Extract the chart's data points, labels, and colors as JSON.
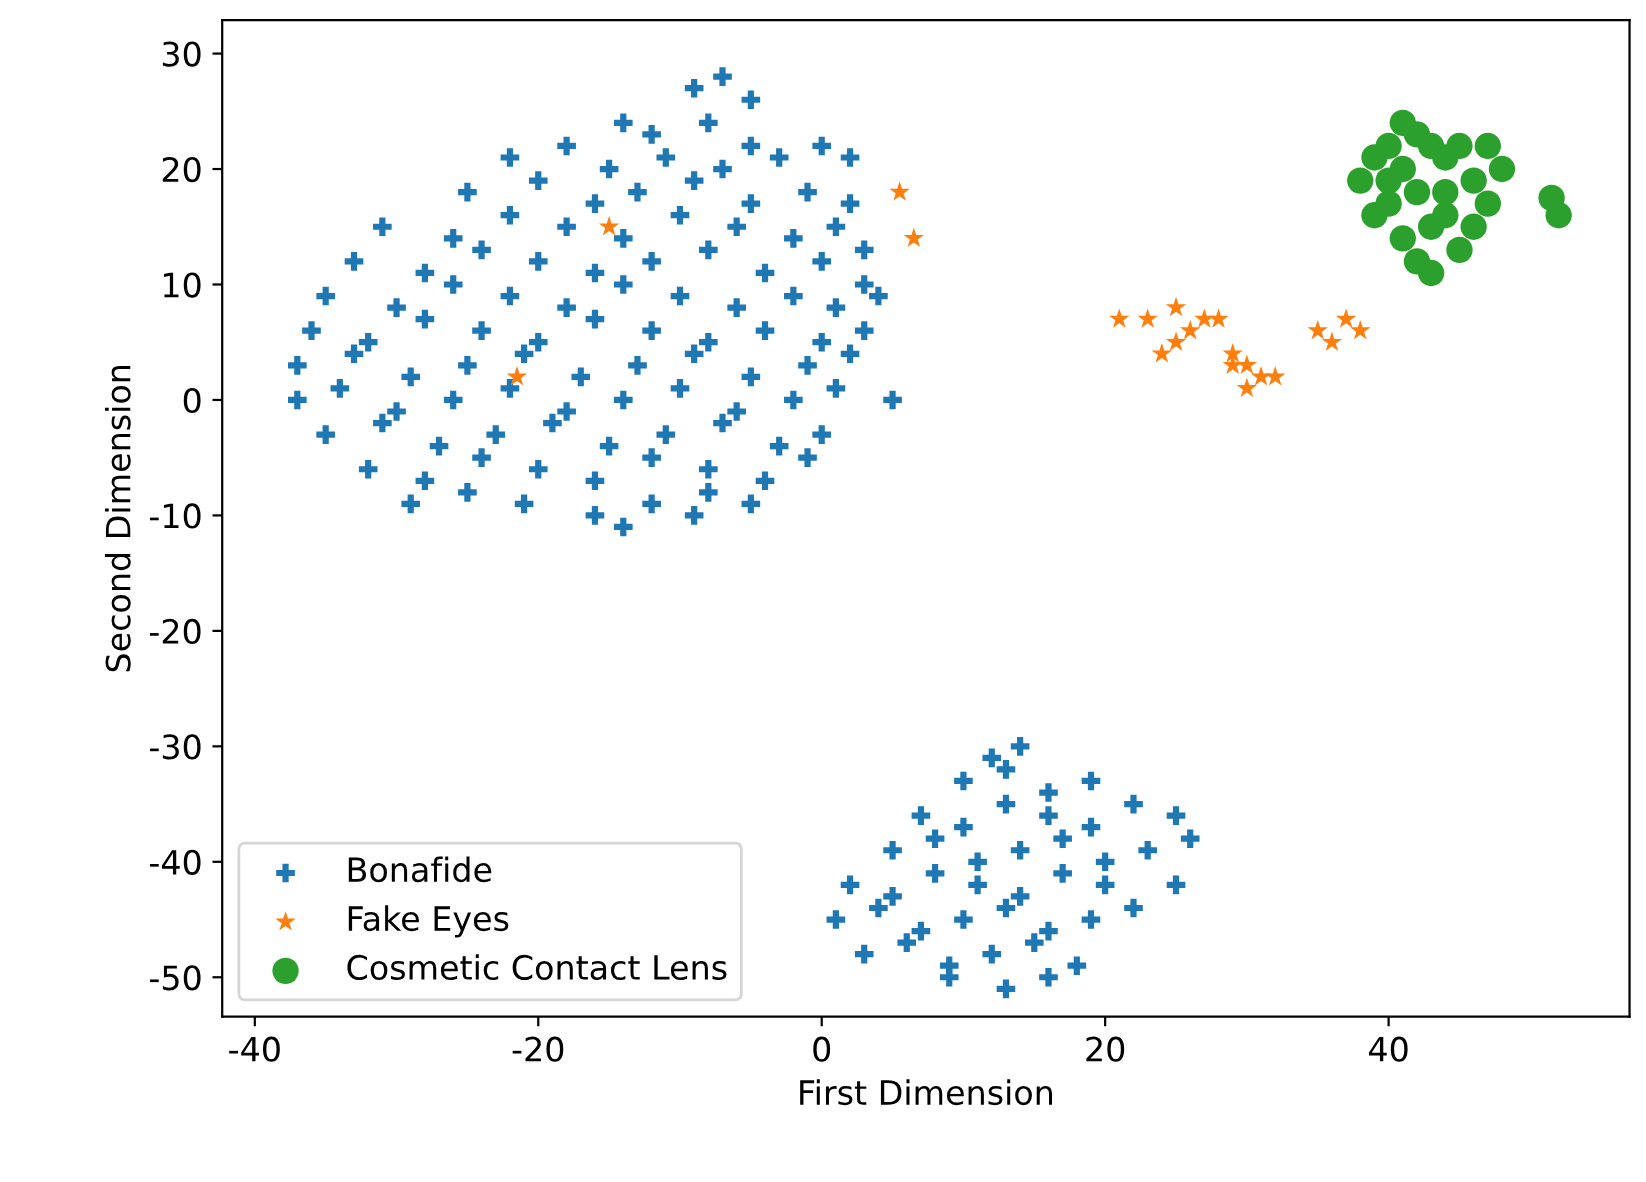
{
  "chart_data": {
    "type": "scatter",
    "xlabel": "First Dimension",
    "ylabel": "Second Dimension",
    "xlim": [
      -42.3,
      57
    ],
    "ylim": [
      -53.4,
      32.9
    ],
    "xticks": [
      -40,
      -20,
      0,
      20,
      40
    ],
    "yticks": [
      -50,
      -40,
      -30,
      -20,
      -10,
      0,
      10,
      20,
      30
    ],
    "grid": false,
    "legend": "bottom left",
    "series": [
      {
        "name": "Bonafide",
        "color": "#1f77b4",
        "marker": "cross",
        "x": [
          -9,
          -7,
          -5,
          -14,
          -12,
          -8,
          -5,
          -22,
          -18,
          -15,
          -11,
          -7,
          -3,
          0,
          2,
          -25,
          -20,
          -16,
          -13,
          -9,
          -5,
          -1,
          2,
          -31,
          -26,
          -22,
          -18,
          -14,
          -10,
          -6,
          -2,
          1,
          3,
          -33,
          -28,
          -24,
          -20,
          -16,
          -12,
          -8,
          -4,
          0,
          3,
          -35,
          -30,
          -26,
          -22,
          -18,
          -14,
          -10,
          -6,
          -2,
          1,
          4,
          -36,
          -32,
          -28,
          -24,
          -20,
          -16,
          -12,
          -8,
          -4,
          0,
          3,
          -37,
          -33,
          -29,
          -25,
          -21,
          -17,
          -13,
          -9,
          -5,
          -1,
          2,
          -37,
          -34,
          -30,
          -26,
          -22,
          -18,
          -14,
          -10,
          -6,
          -2,
          1,
          5,
          -35,
          -31,
          -27,
          -23,
          -19,
          -15,
          -11,
          -7,
          -3,
          0,
          -32,
          -28,
          -24,
          -20,
          -16,
          -12,
          -8,
          -4,
          -1,
          -29,
          -25,
          -21,
          -16,
          -12,
          -8,
          -5,
          -14,
          -9,
          12,
          14,
          10,
          13,
          16,
          19,
          7,
          10,
          13,
          16,
          19,
          22,
          25,
          5,
          8,
          11,
          14,
          17,
          20,
          23,
          26,
          2,
          5,
          8,
          11,
          14,
          17,
          20,
          25,
          1,
          4,
          7,
          10,
          13,
          16,
          19,
          22,
          3,
          6,
          9,
          12,
          15,
          18,
          9,
          13,
          16
        ],
        "values": [
          27,
          28,
          26,
          24,
          23,
          24,
          22,
          21,
          22,
          20,
          21,
          20,
          21,
          22,
          21,
          18,
          19,
          17,
          18,
          19,
          17,
          18,
          17,
          15,
          14,
          16,
          15,
          14,
          16,
          15,
          14,
          15,
          13,
          12,
          11,
          13,
          12,
          11,
          12,
          13,
          11,
          12,
          10,
          9,
          8,
          10,
          9,
          8,
          10,
          9,
          8,
          9,
          8,
          9,
          6,
          5,
          7,
          6,
          5,
          7,
          6,
          5,
          6,
          5,
          6,
          3,
          4,
          2,
          3,
          4,
          2,
          3,
          4,
          2,
          3,
          4,
          0,
          1,
          -1,
          0,
          1,
          -1,
          0,
          1,
          -1,
          0,
          1,
          0,
          -3,
          -2,
          -4,
          -3,
          -2,
          -4,
          -3,
          -2,
          -4,
          -3,
          -6,
          -7,
          -5,
          -6,
          -7,
          -5,
          -6,
          -7,
          -5,
          -9,
          -8,
          -9,
          -10,
          -9,
          -8,
          -9,
          -11,
          -10,
          -31,
          -30,
          -33,
          -32,
          -34,
          -33,
          -36,
          -37,
          -35,
          -36,
          -37,
          -35,
          -36,
          -39,
          -38,
          -40,
          -39,
          -38,
          -40,
          -39,
          -38,
          -42,
          -43,
          -41,
          -42,
          -43,
          -41,
          -42,
          -42,
          -45,
          -44,
          -46,
          -45,
          -44,
          -46,
          -45,
          -44,
          -48,
          -47,
          -49,
          -48,
          -47,
          -49,
          -50,
          -51,
          -50
        ]
      },
      {
        "name": "Fake Eyes",
        "color": "#ff7f0e",
        "marker": "star",
        "x": [
          5.5,
          6.5,
          -15,
          -21.5,
          21,
          23,
          25,
          26,
          27,
          25,
          24,
          28,
          29,
          30,
          31,
          30,
          32,
          29,
          35,
          37,
          38,
          36
        ],
        "values": [
          18,
          14,
          15,
          2,
          7,
          7,
          8,
          6,
          7,
          5,
          4,
          7,
          4,
          3,
          2,
          1,
          2,
          3,
          6,
          7,
          6,
          5
        ]
      },
      {
        "name": "Cosmetic Contact Lens",
        "color": "#2ca02c",
        "marker": "circle",
        "x": [
          38,
          39,
          40,
          41,
          42,
          43,
          44,
          45,
          47,
          46,
          44,
          42,
          40,
          39,
          41,
          42,
          43,
          45,
          46,
          47,
          43,
          41,
          44,
          40,
          48,
          51.5,
          52
        ],
        "values": [
          19,
          21,
          22,
          24,
          23,
          22,
          21,
          22,
          22,
          19,
          18,
          18,
          17,
          16,
          14,
          12,
          11,
          13,
          15,
          17,
          15,
          20,
          16,
          19,
          20,
          17.5,
          16
        ]
      }
    ]
  }
}
